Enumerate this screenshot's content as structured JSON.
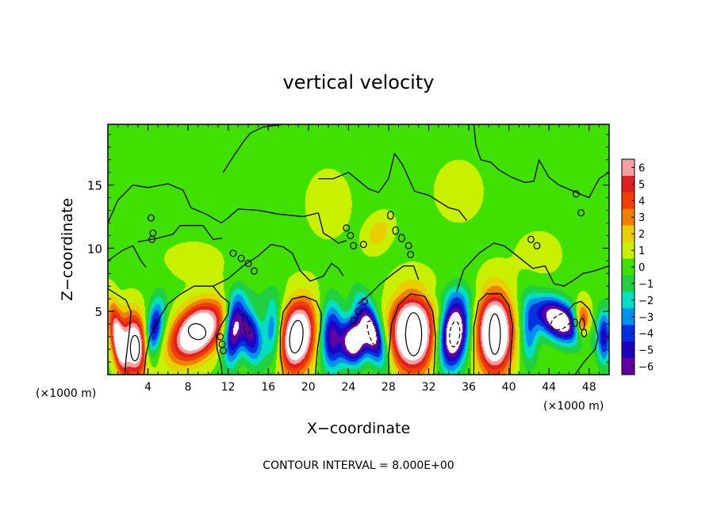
{
  "chart_data": {
    "type": "heatmap",
    "title": "vertical velocity",
    "xlabel": "X−coordinate",
    "ylabel": "Z−coordinate",
    "x_unit_left": "(×1000 m)",
    "x_unit_right": "(×1000 m)",
    "footer": "CONTOUR INTERVAL = 8.000E+00",
    "xlim": [
      0,
      50
    ],
    "ylim": [
      0,
      19.8
    ],
    "x_ticks": [
      4,
      8,
      12,
      16,
      20,
      24,
      28,
      32,
      36,
      40,
      44,
      48
    ],
    "x_tick_labels": [
      "4",
      "8",
      "12",
      "16",
      "20",
      "24",
      "28",
      "32",
      "36",
      "40",
      "44",
      "48"
    ],
    "y_ticks": [
      5,
      10,
      15
    ],
    "y_tick_labels": [
      "5",
      "10",
      "15"
    ],
    "colorbar": {
      "levels": [
        6,
        5,
        4,
        3,
        2,
        1,
        0,
        -1,
        -2,
        -3,
        -4,
        -5,
        -6
      ],
      "labels": [
        "6",
        "5",
        "4",
        "3",
        "2",
        "1",
        "0",
        "−1",
        "−2",
        "−3",
        "−4",
        "−5",
        "−6"
      ],
      "colors": [
        "#f4a0a0",
        "#e02020",
        "#f04000",
        "#f08000",
        "#e8d000",
        "#c8f000",
        "#40e000",
        "#20d040",
        "#00e0c0",
        "#0090f0",
        "#0030e0",
        "#2000c0",
        "#6000a0"
      ],
      "saturated_positive": "#ffffff",
      "saturated_negative": "#ffffff"
    },
    "cells": [
      {
        "x": 1.0,
        "z": 2.8,
        "w": 7.0,
        "sx": 0.7,
        "sz": 2.6,
        "tilt": -0.18
      },
      {
        "x": 2.7,
        "z": 2.3,
        "w": 9.0,
        "sx": 1.3,
        "sz": 2.4,
        "tilt": -0.08
      },
      {
        "x": 4.6,
        "z": 3.5,
        "w": -6.0,
        "sx": 0.9,
        "sz": 2.4,
        "tilt": 0.18
      },
      {
        "x": 8.9,
        "z": 3.4,
        "w": 10.0,
        "sx": 2.3,
        "sz": 2.2,
        "tilt": 0.45
      },
      {
        "x": 12.5,
        "z": 3.5,
        "w": -7.0,
        "sx": 0.9,
        "sz": 2.6,
        "tilt": 0.1
      },
      {
        "x": 14.2,
        "z": 3.2,
        "w": -6.0,
        "sx": 1.1,
        "sz": 2.2,
        "tilt": -0.2
      },
      {
        "x": 16.5,
        "z": 3.5,
        "w": -4.0,
        "sx": 0.9,
        "sz": 2.6,
        "tilt": 0.0
      },
      {
        "x": 18.9,
        "z": 3.0,
        "w": 10.0,
        "sx": 1.7,
        "sz": 2.7,
        "tilt": 0.12
      },
      {
        "x": 22.3,
        "z": 3.0,
        "w": -6.0,
        "sx": 1.1,
        "sz": 2.7,
        "tilt": 0.0
      },
      {
        "x": 24.5,
        "z": 2.6,
        "w": -9.0,
        "sx": 1.2,
        "sz": 1.7,
        "tilt": 0.0
      },
      {
        "x": 26.3,
        "z": 3.4,
        "w": -8.0,
        "sx": 1.1,
        "sz": 2.5,
        "tilt": -0.35
      },
      {
        "x": 30.4,
        "z": 3.3,
        "w": 11.0,
        "sx": 2.1,
        "sz": 2.9,
        "tilt": 0.0
      },
      {
        "x": 34.5,
        "z": 3.3,
        "w": -10.0,
        "sx": 1.4,
        "sz": 2.7,
        "tilt": 0.12
      },
      {
        "x": 38.6,
        "z": 3.3,
        "w": 11.0,
        "sx": 1.7,
        "sz": 3.0,
        "tilt": 0.0
      },
      {
        "x": 42.0,
        "z": 3.3,
        "w": -3.5,
        "sx": 0.9,
        "sz": 2.6,
        "tilt": 0.0
      },
      {
        "x": 45.0,
        "z": 4.3,
        "w": -9.0,
        "sx": 2.1,
        "sz": 1.7,
        "tilt": -0.6
      },
      {
        "x": 47.3,
        "z": 4.2,
        "w": 6.0,
        "sx": 0.8,
        "sz": 1.4,
        "tilt": 0.0
      },
      {
        "x": 49.5,
        "z": 3.0,
        "w": -5.0,
        "sx": 0.7,
        "sz": 2.2,
        "tilt": 0.0
      },
      {
        "x": 27.0,
        "z": 11.2,
        "w": 2.0,
        "sx": 1.2,
        "sz": 1.3,
        "tilt": 0.3
      },
      {
        "x": 22.0,
        "z": 13.5,
        "w": 0.6,
        "sx": 2.5,
        "sz": 3.0,
        "tilt": 0.0
      },
      {
        "x": 35.0,
        "z": 14.5,
        "w": 0.5,
        "sx": 3.0,
        "sz": 3.0,
        "tilt": 0.0
      },
      {
        "x": 8.5,
        "z": 9.0,
        "w": 0.7,
        "sx": 3.0,
        "sz": 1.5,
        "tilt": 0.0
      },
      {
        "x": 43.0,
        "z": 9.5,
        "w": 0.6,
        "sx": 2.5,
        "sz": 2.0,
        "tilt": 0.0
      },
      {
        "x": 14.0,
        "z": 6.3,
        "w": -0.6,
        "sx": 4.0,
        "sz": 0.8,
        "tilt": 0.0
      },
      {
        "x": 33.0,
        "z": 6.3,
        "w": -0.6,
        "sx": 5.0,
        "sz": 0.8,
        "tilt": 0.0
      }
    ],
    "contours_zero": [
      [
        [
          0.0,
          12.0
        ],
        [
          1.0,
          13.8
        ],
        [
          2.5,
          15.0
        ],
        [
          4.0,
          14.8
        ],
        [
          6.0,
          15.1
        ],
        [
          7.5,
          14.6
        ],
        [
          8.3,
          13.2
        ],
        [
          9.8,
          12.7
        ],
        [
          11.3,
          12.0
        ],
        [
          12.0,
          12.4
        ],
        [
          13.0,
          13.1
        ],
        [
          15.0,
          13.0
        ],
        [
          17.0,
          12.7
        ],
        [
          19.5,
          12.5
        ],
        [
          21.0,
          12.8
        ]
      ],
      [
        [
          11.5,
          16.0
        ],
        [
          12.3,
          17.0
        ],
        [
          13.5,
          18.4
        ],
        [
          14.2,
          19.1
        ],
        [
          15.5,
          19.6
        ],
        [
          17.5,
          19.8
        ]
      ],
      [
        [
          21.0,
          12.8
        ],
        [
          21.5,
          11.2
        ],
        [
          22.3,
          10.8
        ],
        [
          23.0,
          10.4
        ],
        [
          23.8,
          10.6
        ]
      ],
      [
        [
          21.0,
          15.5
        ],
        [
          22.5,
          15.5
        ],
        [
          24.0,
          16.0
        ],
        [
          26.0,
          14.7
        ],
        [
          27.0,
          14.4
        ],
        [
          28.0,
          15.5
        ],
        [
          28.6,
          17.5
        ],
        [
          29.4,
          16.6
        ],
        [
          30.6,
          14.5
        ],
        [
          32.0,
          14.2
        ],
        [
          34.0,
          13.2
        ],
        [
          35.0,
          13.0
        ],
        [
          35.8,
          12.2
        ]
      ],
      [
        [
          36.5,
          19.8
        ],
        [
          36.7,
          18.2
        ],
        [
          37.2,
          17.0
        ],
        [
          38.2,
          16.8
        ],
        [
          39.0,
          16.2
        ],
        [
          40.3,
          15.6
        ],
        [
          41.6,
          15.2
        ],
        [
          42.5,
          15.3
        ],
        [
          43.0,
          17.0
        ],
        [
          44.0,
          15.6
        ],
        [
          45.0,
          15.0
        ],
        [
          46.5,
          14.5
        ],
        [
          48.0,
          14.0
        ],
        [
          49.0,
          15.5
        ],
        [
          50.0,
          16.0
        ]
      ],
      [
        [
          3.0,
          10.5
        ],
        [
          5.0,
          10.8
        ],
        [
          6.5,
          11.1
        ],
        [
          7.2,
          11.8
        ],
        [
          9.5,
          11.8
        ],
        [
          10.5,
          10.7
        ],
        [
          11.4,
          10.8
        ]
      ],
      [
        [
          10.5,
          7.0
        ],
        [
          12.0,
          7.6
        ],
        [
          13.5,
          8.6
        ],
        [
          15.0,
          9.4
        ],
        [
          16.3,
          10.3
        ],
        [
          17.5,
          10.1
        ],
        [
          18.4,
          9.6
        ],
        [
          19.2,
          8.2
        ],
        [
          20.2,
          7.4
        ],
        [
          21.5,
          7.8
        ],
        [
          22.3,
          8.8
        ],
        [
          23.0,
          8.4
        ],
        [
          23.5,
          7.8
        ]
      ],
      [
        [
          25.0,
          5.6
        ],
        [
          26.2,
          6.4
        ],
        [
          27.2,
          7.2
        ],
        [
          28.5,
          8.0
        ],
        [
          29.5,
          8.6
        ],
        [
          30.5,
          8.6
        ],
        [
          31.0,
          7.5
        ]
      ],
      [
        [
          34.8,
          6.6
        ],
        [
          35.5,
          8.3
        ],
        [
          37.0,
          9.6
        ],
        [
          38.5,
          10.4
        ],
        [
          39.5,
          10.2
        ],
        [
          40.5,
          9.6
        ],
        [
          42.4,
          8.4
        ],
        [
          43.6,
          8.6
        ],
        [
          44.5,
          7.2
        ],
        [
          45.5,
          7.0
        ],
        [
          46.5,
          7.5
        ],
        [
          47.4,
          8.0
        ],
        [
          48.5,
          8.2
        ],
        [
          50.0,
          8.6
        ]
      ],
      [
        [
          0.0,
          9.0
        ],
        [
          1.4,
          9.8
        ],
        [
          2.5,
          10.2
        ],
        [
          3.3,
          9.0
        ],
        [
          3.8,
          8.5
        ]
      ],
      [
        [
          0.0,
          6.8
        ],
        [
          1.0,
          6.3
        ],
        [
          1.8,
          5.9
        ],
        [
          2.3,
          5.0
        ],
        [
          2.2,
          3.8
        ],
        [
          2.0,
          2.5
        ],
        [
          1.8,
          1.2
        ],
        [
          1.7,
          0.0
        ]
      ],
      [
        [
          3.6,
          0.0
        ],
        [
          3.8,
          1.5
        ],
        [
          4.2,
          3.0
        ],
        [
          5.3,
          4.7
        ],
        [
          6.0,
          5.6
        ],
        [
          7.3,
          6.4
        ],
        [
          8.6,
          7.0
        ],
        [
          10.5,
          7.0
        ],
        [
          11.3,
          6.2
        ],
        [
          12.1,
          5.7
        ],
        [
          12.0,
          4.8
        ],
        [
          11.2,
          3.8
        ],
        [
          10.8,
          3.0
        ],
        [
          10.9,
          2.0
        ],
        [
          11.3,
          0.8
        ],
        [
          11.4,
          0.0
        ]
      ],
      [
        [
          17.5,
          0.0
        ],
        [
          17.2,
          1.5
        ],
        [
          17.2,
          3.4
        ],
        [
          17.5,
          5.0
        ],
        [
          18.4,
          6.0
        ],
        [
          19.6,
          6.2
        ],
        [
          20.8,
          5.8
        ],
        [
          21.3,
          4.8
        ],
        [
          21.2,
          3.6
        ],
        [
          20.9,
          2.0
        ],
        [
          20.8,
          0.9
        ],
        [
          20.7,
          0.0
        ]
      ],
      [
        [
          28.0,
          0.0
        ],
        [
          28.0,
          1.5
        ],
        [
          28.3,
          4.0
        ],
        [
          29.0,
          5.5
        ],
        [
          30.2,
          6.4
        ],
        [
          31.6,
          6.2
        ],
        [
          32.4,
          5.0
        ],
        [
          32.7,
          3.0
        ],
        [
          32.6,
          1.4
        ],
        [
          32.5,
          0.0
        ]
      ],
      [
        [
          36.5,
          0.0
        ],
        [
          36.5,
          1.8
        ],
        [
          36.5,
          3.8
        ],
        [
          37.0,
          5.8
        ],
        [
          37.8,
          6.4
        ],
        [
          39.2,
          6.4
        ],
        [
          40.0,
          5.5
        ],
        [
          40.4,
          3.8
        ],
        [
          40.2,
          1.8
        ],
        [
          40.1,
          0.0
        ]
      ],
      [
        [
          45.8,
          5.0
        ],
        [
          46.5,
          5.6
        ],
        [
          47.2,
          5.8
        ],
        [
          48.0,
          5.2
        ],
        [
          48.6,
          4.0
        ],
        [
          48.9,
          3.0
        ],
        [
          48.6,
          2.0
        ],
        [
          47.5,
          1.0
        ],
        [
          46.6,
          0.0
        ]
      ]
    ],
    "contours_closed": [
      {
        "x": 2.7,
        "z": 2.1,
        "rx": 0.45,
        "rz": 1.0,
        "tilt": 0.0,
        "dashed": false
      },
      {
        "x": 8.9,
        "z": 3.4,
        "rx": 0.9,
        "rz": 0.6,
        "tilt": 0.55,
        "dashed": false
      },
      {
        "x": 18.8,
        "z": 3.0,
        "rx": 0.65,
        "rz": 1.3,
        "tilt": 0.12,
        "dashed": false
      },
      {
        "x": 30.5,
        "z": 3.2,
        "rx": 0.8,
        "rz": 1.7,
        "tilt": 0.0,
        "dashed": false
      },
      {
        "x": 38.6,
        "z": 3.2,
        "rx": 0.55,
        "rz": 1.6,
        "tilt": 0.0,
        "dashed": false
      },
      {
        "x": 13.8,
        "z": 4.0,
        "rx": 0.3,
        "rz": 0.85,
        "tilt": -0.15,
        "dashed": true
      },
      {
        "x": 26.5,
        "z": 3.2,
        "rx": 0.45,
        "rz": 1.1,
        "tilt": -0.35,
        "dashed": true
      },
      {
        "x": 34.6,
        "z": 3.2,
        "rx": 0.5,
        "rz": 1.0,
        "tilt": 0.1,
        "dashed": true
      },
      {
        "x": 45.2,
        "z": 4.2,
        "rx": 1.1,
        "rz": 0.55,
        "tilt": -0.6,
        "dashed": true
      },
      {
        "x": 47.3,
        "z": 4.0,
        "rx": 0.25,
        "rz": 0.45,
        "tilt": 0.0,
        "dashed": false
      },
      {
        "x": 11.2,
        "z": 3.0,
        "rx": 0.3,
        "rz": 0.25,
        "tilt": 0.0,
        "dashed": false
      },
      {
        "x": 11.4,
        "z": 2.4,
        "rx": 0.3,
        "rz": 0.25,
        "tilt": 0.0,
        "dashed": false
      },
      {
        "x": 11.5,
        "z": 1.9,
        "rx": 0.3,
        "rz": 0.25,
        "tilt": 0.0,
        "dashed": false
      },
      {
        "x": 25.0,
        "z": 5.0,
        "rx": 0.3,
        "rz": 0.25,
        "tilt": 0.0,
        "dashed": false
      },
      {
        "x": 25.6,
        "z": 5.8,
        "rx": 0.3,
        "rz": 0.25,
        "tilt": 0.0,
        "dashed": false
      },
      {
        "x": 24.5,
        "z": 4.3,
        "rx": 0.3,
        "rz": 0.25,
        "tilt": 0.0,
        "dashed": false
      },
      {
        "x": 4.3,
        "z": 12.4,
        "rx": 0.3,
        "rz": 0.25,
        "tilt": 0.0,
        "dashed": false
      },
      {
        "x": 4.5,
        "z": 11.2,
        "rx": 0.3,
        "rz": 0.25,
        "tilt": 0.0,
        "dashed": false
      },
      {
        "x": 4.4,
        "z": 10.7,
        "rx": 0.3,
        "rz": 0.25,
        "tilt": 0.0,
        "dashed": false
      },
      {
        "x": 12.5,
        "z": 9.6,
        "rx": 0.3,
        "rz": 0.25,
        "tilt": 0.0,
        "dashed": false
      },
      {
        "x": 13.3,
        "z": 9.2,
        "rx": 0.3,
        "rz": 0.25,
        "tilt": 0.0,
        "dashed": false
      },
      {
        "x": 14.0,
        "z": 8.8,
        "rx": 0.3,
        "rz": 0.25,
        "tilt": 0.0,
        "dashed": false
      },
      {
        "x": 14.6,
        "z": 8.2,
        "rx": 0.3,
        "rz": 0.25,
        "tilt": 0.0,
        "dashed": false
      },
      {
        "x": 23.8,
        "z": 11.6,
        "rx": 0.3,
        "rz": 0.25,
        "tilt": 0.0,
        "dashed": false
      },
      {
        "x": 24.2,
        "z": 11.0,
        "rx": 0.3,
        "rz": 0.25,
        "tilt": 0.0,
        "dashed": false
      },
      {
        "x": 24.5,
        "z": 10.2,
        "rx": 0.3,
        "rz": 0.25,
        "tilt": 0.0,
        "dashed": false
      },
      {
        "x": 25.5,
        "z": 10.3,
        "rx": 0.3,
        "rz": 0.25,
        "tilt": 0.0,
        "dashed": false
      },
      {
        "x": 28.2,
        "z": 12.6,
        "rx": 0.3,
        "rz": 0.3,
        "tilt": 0.0,
        "dashed": false
      },
      {
        "x": 28.7,
        "z": 11.4,
        "rx": 0.3,
        "rz": 0.3,
        "tilt": 0.0,
        "dashed": false
      },
      {
        "x": 29.3,
        "z": 10.8,
        "rx": 0.3,
        "rz": 0.3,
        "tilt": 0.0,
        "dashed": false
      },
      {
        "x": 30.0,
        "z": 10.2,
        "rx": 0.3,
        "rz": 0.25,
        "tilt": 0.0,
        "dashed": false
      },
      {
        "x": 30.2,
        "z": 9.5,
        "rx": 0.3,
        "rz": 0.25,
        "tilt": 0.0,
        "dashed": false
      },
      {
        "x": 42.2,
        "z": 10.7,
        "rx": 0.3,
        "rz": 0.25,
        "tilt": 0.0,
        "dashed": false
      },
      {
        "x": 42.8,
        "z": 10.2,
        "rx": 0.3,
        "rz": 0.25,
        "tilt": 0.0,
        "dashed": false
      },
      {
        "x": 47.2,
        "z": 12.8,
        "rx": 0.3,
        "rz": 0.25,
        "tilt": 0.0,
        "dashed": false
      },
      {
        "x": 46.7,
        "z": 14.3,
        "rx": 0.3,
        "rz": 0.25,
        "tilt": 0.0,
        "dashed": false
      },
      {
        "x": 46.6,
        "z": 4.1,
        "rx": 0.25,
        "rz": 0.3,
        "tilt": 0.0,
        "dashed": false
      },
      {
        "x": 47.5,
        "z": 3.3,
        "rx": 0.25,
        "rz": 0.3,
        "tilt": 0.0,
        "dashed": false
      }
    ]
  }
}
